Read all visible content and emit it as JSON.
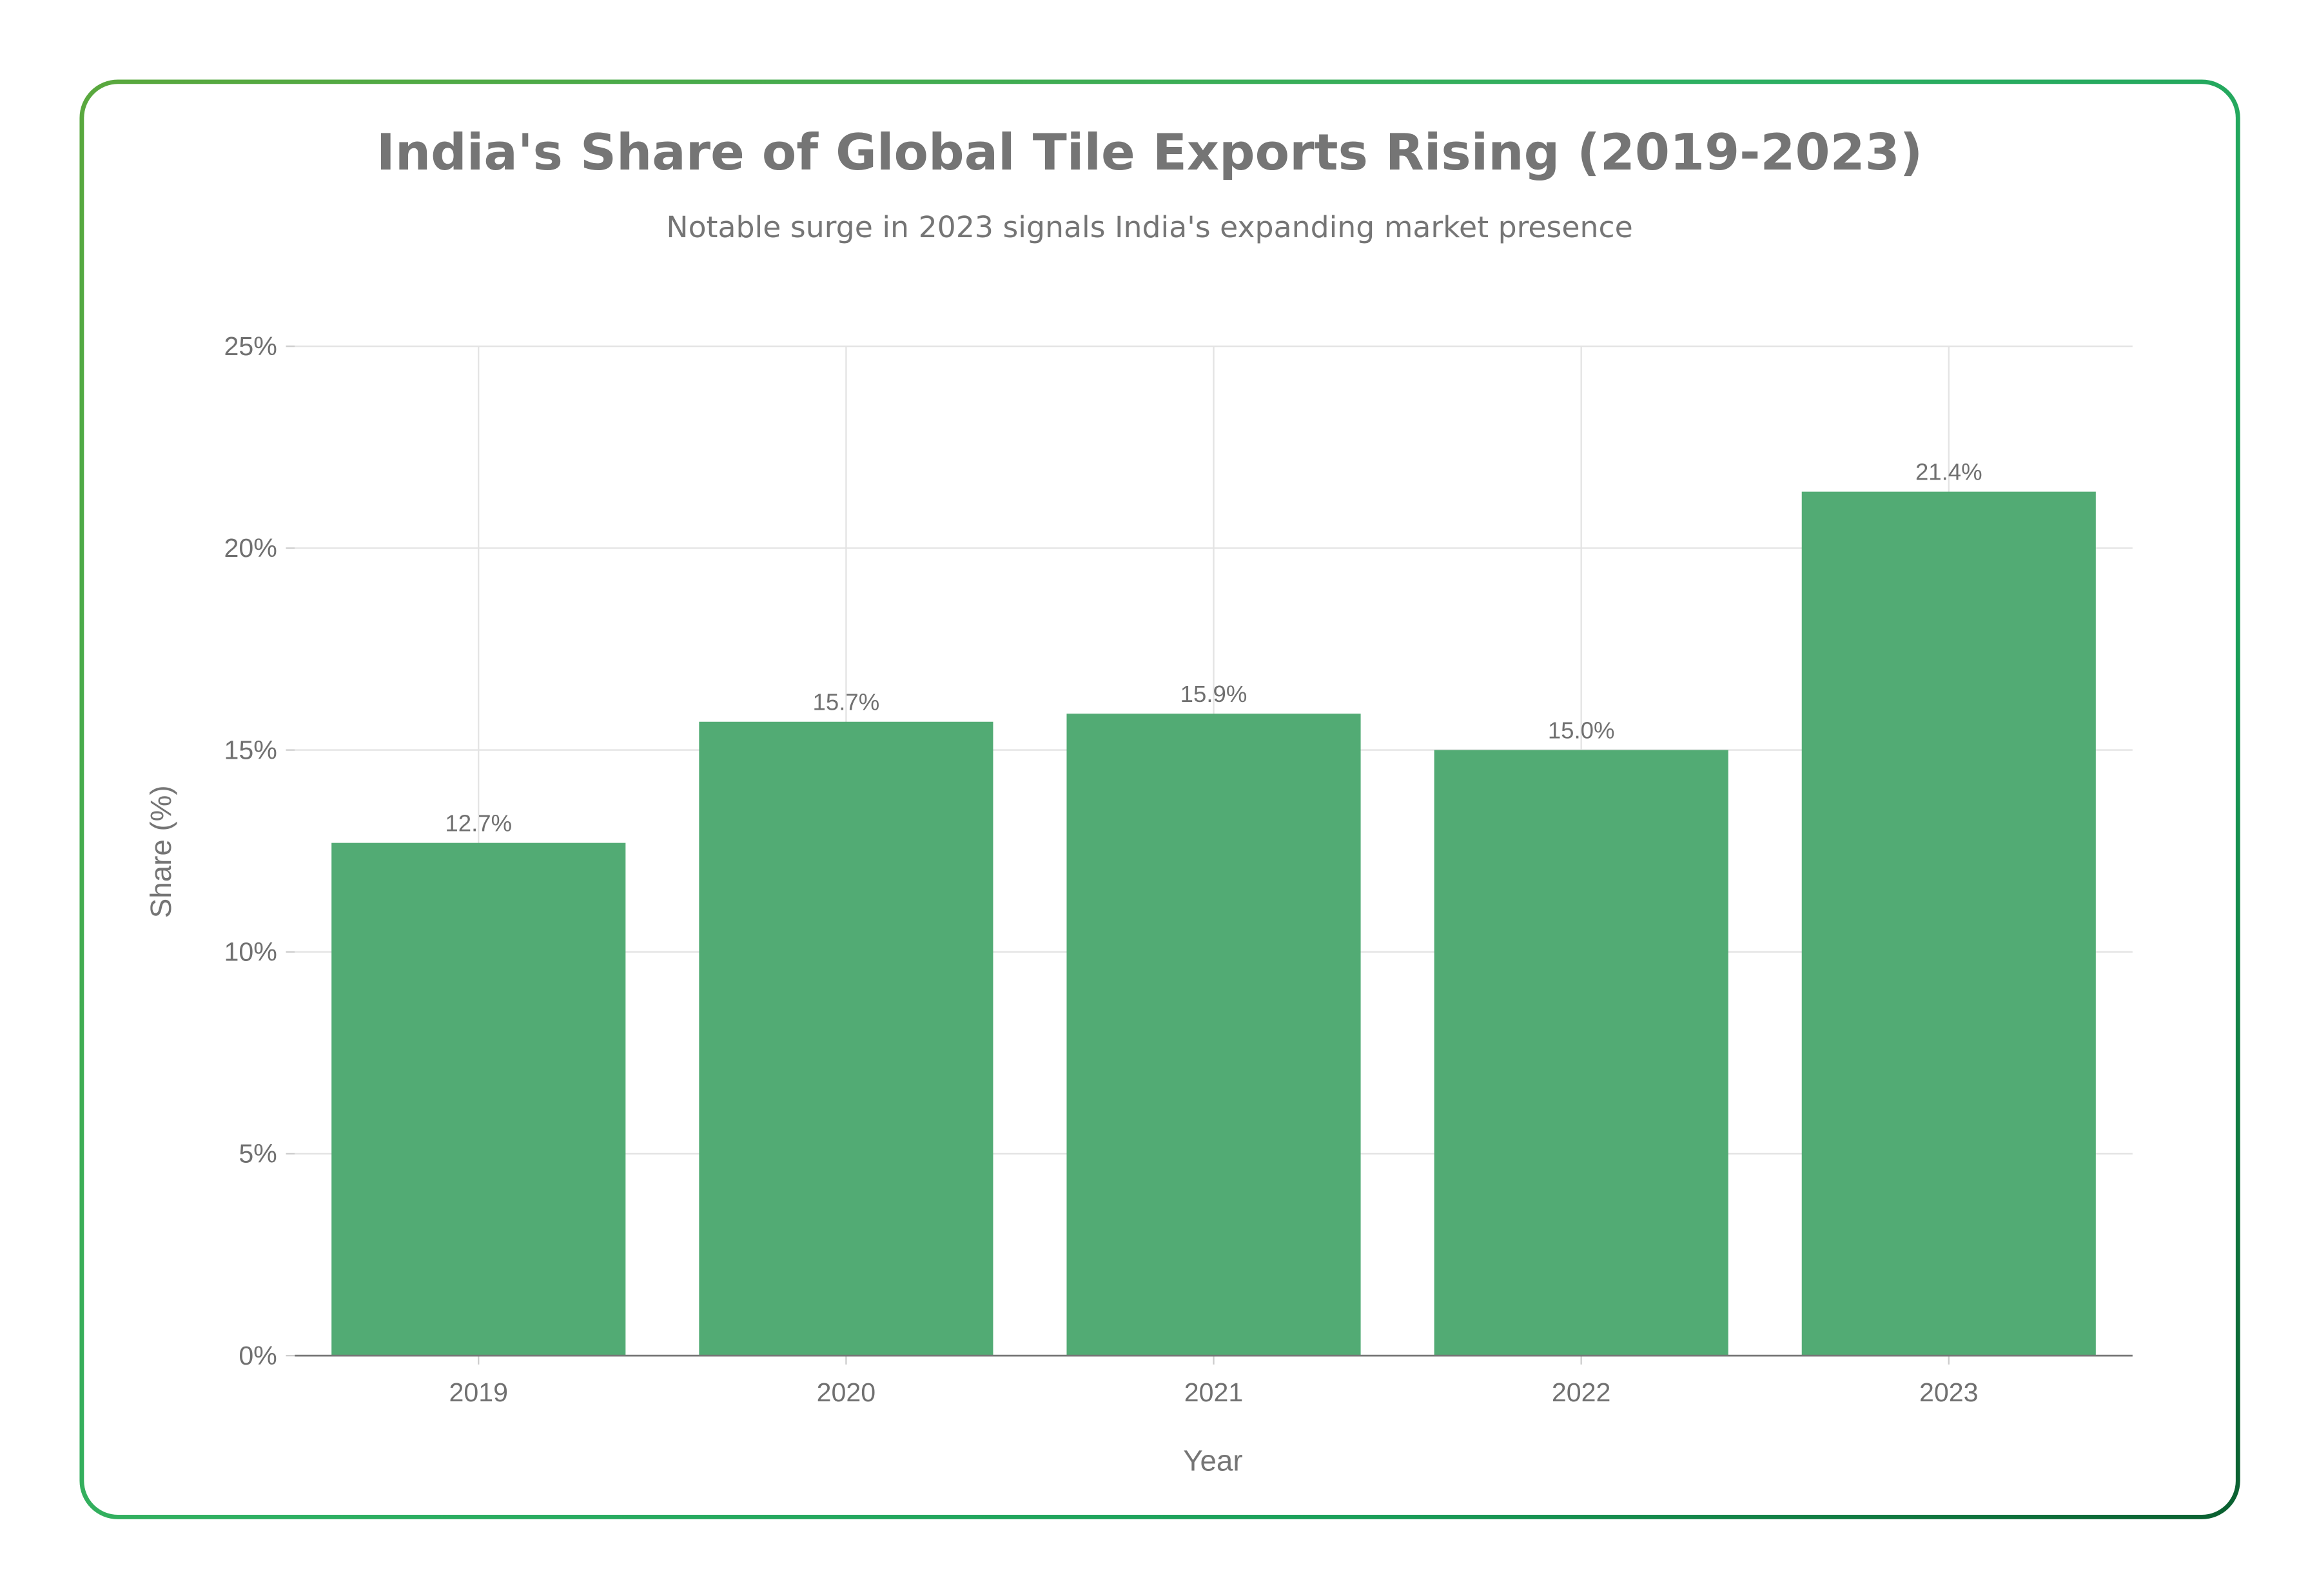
{
  "chart_data": {
    "type": "bar",
    "title": "India's Share of Global Tile Exports Rising (2019-2023)",
    "subtitle": "Notable surge in 2023 signals India's expanding market presence",
    "xlabel": "Year",
    "ylabel": "Share (%)",
    "categories": [
      "2019",
      "2020",
      "2021",
      "2022",
      "2023"
    ],
    "values": [
      12.7,
      15.7,
      15.9,
      15.0,
      21.4
    ],
    "data_labels": [
      "12.7%",
      "15.7%",
      "15.9%",
      "15.0%",
      "21.4%"
    ],
    "ylim": [
      0,
      25
    ],
    "yticks": [
      0,
      5,
      10,
      15,
      20,
      25
    ],
    "ytick_labels": [
      "0%",
      "5%",
      "10%",
      "15%",
      "20%",
      "25%"
    ],
    "grid": true,
    "colors": {
      "bar": "#52ab74",
      "text": "#757575",
      "border_start": "#5aa83d",
      "border_end": "#0a5f30"
    }
  }
}
